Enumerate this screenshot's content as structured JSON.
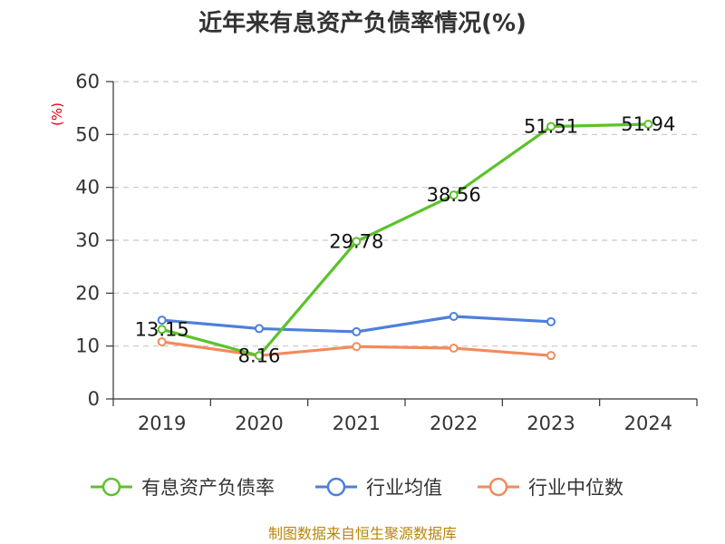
{
  "chart_data": {
    "type": "line",
    "title": "近年来有息资产负债率情况(%)",
    "ylabel": "(%)",
    "categories": [
      "2019",
      "2020",
      "2021",
      "2022",
      "2023",
      "2024"
    ],
    "ylim": [
      0,
      60
    ],
    "yticks": [
      0,
      10,
      20,
      30,
      40,
      50,
      60
    ],
    "grid": true,
    "legend_position": "bottom",
    "series": [
      {
        "name": "有息资产负债率",
        "color": "#5cc22b",
        "values": [
          13.15,
          8.16,
          29.78,
          38.56,
          51.51,
          51.94
        ],
        "labels": [
          "13.15",
          "8.16",
          "29.78",
          "38.56",
          "51.51",
          "51.94"
        ]
      },
      {
        "name": "行业均值",
        "color": "#4e7fdb",
        "values": [
          14.9,
          13.3,
          12.7,
          15.6,
          14.6,
          null
        ]
      },
      {
        "name": "行业中位数",
        "color": "#f28b5b",
        "values": [
          10.8,
          8.2,
          9.9,
          9.6,
          8.2,
          null
        ]
      }
    ]
  },
  "footer": {
    "source": "制图数据来自恒生聚源数据库"
  }
}
